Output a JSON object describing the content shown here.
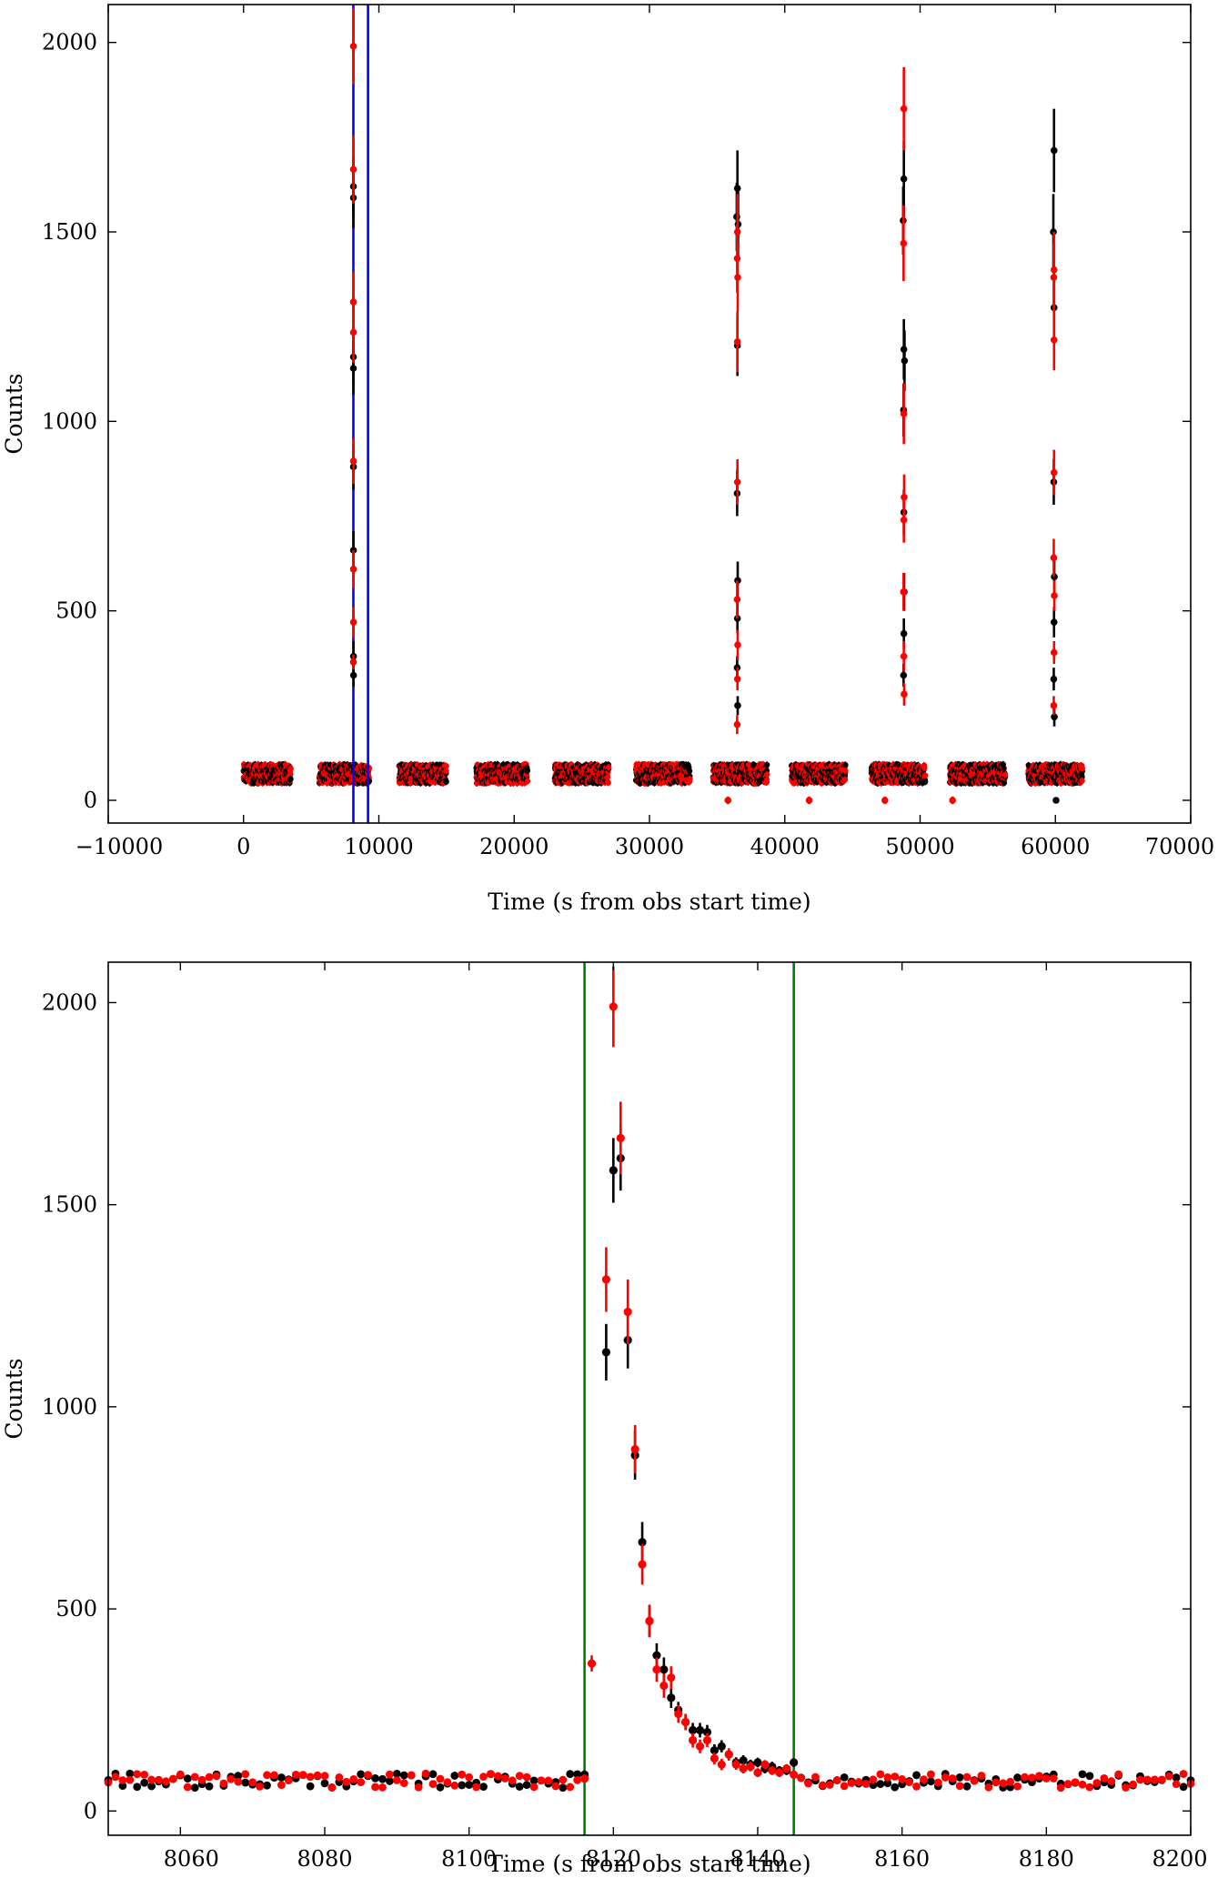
{
  "chart_data": [
    {
      "type": "scatter",
      "panel": "top",
      "xlabel": "Time (s from obs start time)",
      "ylabel": "Counts",
      "xlim": [
        -10000,
        70000
      ],
      "ylim": [
        -60,
        2100
      ],
      "xticks": [
        -10000,
        0,
        10000,
        20000,
        30000,
        40000,
        50000,
        60000,
        70000
      ],
      "xtick_labels": [
        "−10000",
        "0",
        "10000",
        "20000",
        "30000",
        "40000",
        "50000",
        "60000",
        "70000"
      ],
      "yticks": [
        0,
        500,
        1000,
        1500,
        2000
      ],
      "ytick_labels": [
        "0",
        "500",
        "1000",
        "1500",
        "2000"
      ],
      "baseline_level": 70,
      "segments": [
        [
          0,
          3500
        ],
        [
          5600,
          9300
        ],
        [
          11500,
          15000
        ],
        [
          17200,
          21000
        ],
        [
          23000,
          27000
        ],
        [
          29000,
          33000
        ],
        [
          34700,
          38700
        ],
        [
          40500,
          44500
        ],
        [
          46400,
          50400
        ],
        [
          52200,
          56300
        ],
        [
          58000,
          62000
        ]
      ],
      "series": [
        {
          "name": "black",
          "color": "#000000",
          "points": [
            [
              8120,
              1620,
              80
            ],
            [
              8119,
              1590,
              80
            ],
            [
              8121,
              1170,
              70
            ],
            [
              8118,
              1140,
              70
            ],
            [
              8122,
              880,
              60
            ],
            [
              8124,
              660,
              50
            ],
            [
              8126,
              380,
              40
            ],
            [
              8128,
              330,
              30
            ],
            [
              36500,
              1615,
              100
            ],
            [
              36450,
              1540,
              90
            ],
            [
              36550,
              1520,
              90
            ],
            [
              36500,
              1200,
              80
            ],
            [
              36480,
              810,
              60
            ],
            [
              36520,
              580,
              50
            ],
            [
              36500,
              480,
              40
            ],
            [
              36480,
              350,
              30
            ],
            [
              36520,
              250,
              25
            ],
            [
              48800,
              1640,
              100
            ],
            [
              48750,
              1530,
              90
            ],
            [
              48800,
              1190,
              80
            ],
            [
              48850,
              1160,
              80
            ],
            [
              48780,
              1030,
              70
            ],
            [
              48800,
              760,
              60
            ],
            [
              48820,
              550,
              50
            ],
            [
              48800,
              440,
              40
            ],
            [
              48780,
              330,
              30
            ],
            [
              59900,
              1715,
              110
            ],
            [
              59850,
              1500,
              100
            ],
            [
              59900,
              1300,
              90
            ],
            [
              59880,
              840,
              60
            ],
            [
              59920,
              590,
              50
            ],
            [
              59900,
              470,
              40
            ],
            [
              59880,
              320,
              30
            ],
            [
              59920,
              220,
              25
            ],
            [
              60050,
              0,
              8
            ]
          ]
        },
        {
          "name": "red",
          "color": "#ff0000",
          "points": [
            [
              8120,
              1990,
              100
            ],
            [
              8121,
              1665,
              90
            ],
            [
              8119,
              1315,
              80
            ],
            [
              8122,
              1235,
              80
            ],
            [
              8123,
              895,
              60
            ],
            [
              8124,
              610,
              50
            ],
            [
              8125,
              470,
              40
            ],
            [
              8117,
              365,
              20
            ],
            [
              36500,
              1500,
              100
            ],
            [
              36480,
              1430,
              90
            ],
            [
              36520,
              1380,
              90
            ],
            [
              36500,
              1210,
              80
            ],
            [
              36500,
              840,
              60
            ],
            [
              36480,
              530,
              50
            ],
            [
              36520,
              410,
              40
            ],
            [
              36500,
              320,
              30
            ],
            [
              36480,
              200,
              25
            ],
            [
              48800,
              1825,
              110
            ],
            [
              48780,
              1470,
              100
            ],
            [
              48800,
              1020,
              80
            ],
            [
              48820,
              800,
              60
            ],
            [
              48800,
              740,
              60
            ],
            [
              48780,
              550,
              50
            ],
            [
              48800,
              380,
              40
            ],
            [
              48820,
              280,
              30
            ],
            [
              59900,
              1400,
              100
            ],
            [
              59880,
              1380,
              90
            ],
            [
              59900,
              1215,
              80
            ],
            [
              59900,
              865,
              60
            ],
            [
              59880,
              640,
              50
            ],
            [
              59920,
              540,
              40
            ],
            [
              59900,
              390,
              30
            ],
            [
              59880,
              250,
              25
            ],
            [
              35800,
              0,
              10
            ],
            [
              41800,
              0,
              10
            ],
            [
              47400,
              0,
              10
            ],
            [
              52400,
              0,
              10
            ]
          ]
        }
      ],
      "vertical_lines": [
        {
          "x": 8116,
          "color": "#0000ff"
        },
        {
          "x": 9200,
          "color": "#0000ff"
        }
      ]
    },
    {
      "type": "scatter",
      "panel": "bottom",
      "xlabel": "Time (s from obs start time)",
      "ylabel": "Counts",
      "xlim": [
        8050,
        8200
      ],
      "ylim": [
        -60,
        2100
      ],
      "xticks": [
        8060,
        8080,
        8100,
        8120,
        8140,
        8160,
        8180,
        8200
      ],
      "xtick_labels": [
        "8060",
        "8080",
        "8100",
        "8120",
        "8140",
        "8160",
        "8180",
        "8200"
      ],
      "yticks": [
        0,
        500,
        1000,
        1500,
        2000
      ],
      "ytick_labels": [
        "0",
        "500",
        "1000",
        "1500",
        "2000"
      ],
      "series": [
        {
          "name": "black",
          "color": "#000000",
          "points": [
            [
              8116,
              90,
              10
            ],
            [
              8119,
              1135,
              70
            ],
            [
              8120,
              1585,
              80
            ],
            [
              8121,
              1615,
              80
            ],
            [
              8122,
              1165,
              70
            ],
            [
              8123,
              880,
              60
            ],
            [
              8124,
              665,
              50
            ],
            [
              8125,
              470,
              40
            ],
            [
              8126,
              385,
              30
            ],
            [
              8127,
              350,
              30
            ],
            [
              8128,
              280,
              25
            ],
            [
              8129,
              250,
              20
            ],
            [
              8130,
              220,
              20
            ],
            [
              8131,
              200,
              18
            ],
            [
              8132,
              200,
              18
            ],
            [
              8133,
              195,
              18
            ],
            [
              8134,
              150,
              15
            ],
            [
              8135,
              160,
              15
            ],
            [
              8136,
              140,
              15
            ],
            [
              8137,
              120,
              13
            ],
            [
              8138,
              125,
              13
            ],
            [
              8139,
              115,
              12
            ],
            [
              8140,
              120,
              12
            ],
            [
              8141,
              105,
              12
            ],
            [
              8142,
              110,
              12
            ],
            [
              8143,
              100,
              11
            ],
            [
              8144,
              100,
              11
            ],
            [
              8145,
              120,
              11
            ]
          ]
        },
        {
          "name": "red",
          "color": "#ff0000",
          "points": [
            [
              8116,
              80,
              10
            ],
            [
              8117,
              365,
              20
            ],
            [
              8119,
              1315,
              80
            ],
            [
              8120,
              1990,
              100
            ],
            [
              8121,
              1665,
              90
            ],
            [
              8122,
              1235,
              80
            ],
            [
              8123,
              895,
              60
            ],
            [
              8124,
              610,
              50
            ],
            [
              8125,
              470,
              40
            ],
            [
              8126,
              350,
              30
            ],
            [
              8127,
              310,
              30
            ],
            [
              8128,
              330,
              28
            ],
            [
              8129,
              240,
              22
            ],
            [
              8130,
              220,
              20
            ],
            [
              8131,
              175,
              18
            ],
            [
              8132,
              160,
              17
            ],
            [
              8133,
              175,
              17
            ],
            [
              8134,
              130,
              15
            ],
            [
              8135,
              115,
              14
            ],
            [
              8136,
              140,
              14
            ],
            [
              8137,
              115,
              13
            ],
            [
              8138,
              105,
              12
            ],
            [
              8139,
              110,
              12
            ],
            [
              8140,
              95,
              11
            ],
            [
              8141,
              115,
              11
            ],
            [
              8142,
              100,
              11
            ],
            [
              8143,
              95,
              11
            ],
            [
              8144,
              105,
              11
            ],
            [
              8145,
              90,
              11
            ]
          ]
        }
      ],
      "vertical_lines": [
        {
          "x": 8116,
          "color": "#008000"
        },
        {
          "x": 8145,
          "color": "#008000"
        }
      ]
    }
  ]
}
